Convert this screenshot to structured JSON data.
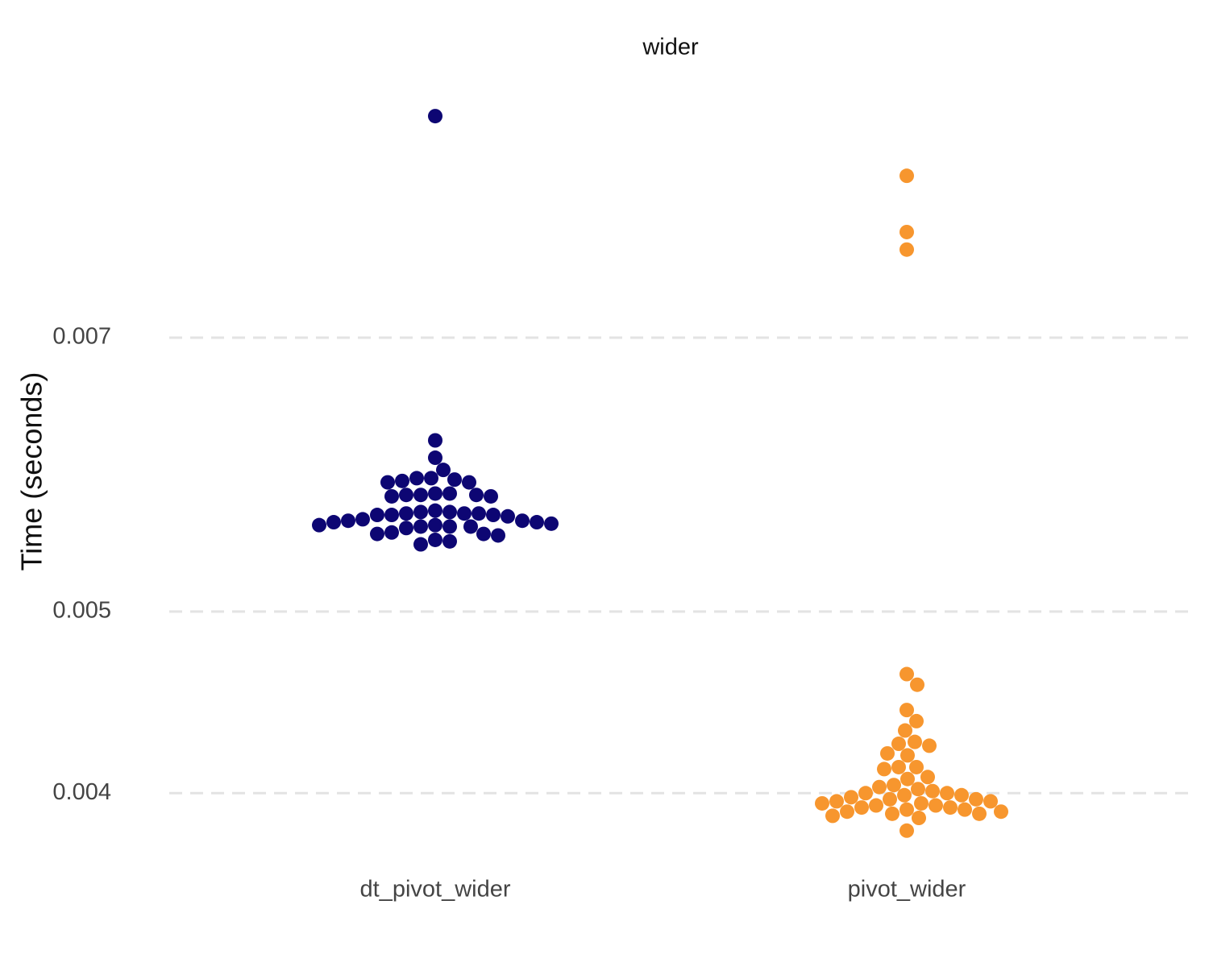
{
  "chart_data": {
    "type": "beeswarm",
    "title": "wider",
    "y_label": "Time (seconds)",
    "categories": [
      "dt_pivot_wider",
      "pivot_wider"
    ],
    "colors": [
      "#0d0673",
      "#f7962e"
    ],
    "values": [
      [
        0.00919,
        0.00617,
        0.00604,
        0.00595,
        0.00589,
        0.00589,
        0.00588,
        0.00587,
        0.00586,
        0.00586,
        0.00578,
        0.00578,
        0.00577,
        0.00577,
        0.00577,
        0.00576,
        0.00576,
        0.00566,
        0.00565,
        0.00565,
        0.00564,
        0.00564,
        0.00564,
        0.00563,
        0.00563,
        0.00563,
        0.00562,
        0.0056,
        0.00559,
        0.00559,
        0.00558,
        0.00558,
        0.00557,
        0.00556,
        0.00556,
        0.00555,
        0.00555,
        0.00555,
        0.00554,
        0.00551,
        0.0055,
        0.0055,
        0.00549,
        0.00546,
        0.00545,
        0.00543
      ],
      [
        0.00854,
        0.00797,
        0.0078,
        0.00463,
        0.00457,
        0.00443,
        0.00437,
        0.00432,
        0.00426,
        0.00425,
        0.00424,
        0.0042,
        0.00419,
        0.00413,
        0.00413,
        0.00412,
        0.00408,
        0.00407,
        0.00404,
        0.00403,
        0.00402,
        0.00401,
        0.004,
        0.004,
        0.00399,
        0.00399,
        0.00398,
        0.00397,
        0.00397,
        0.00396,
        0.00396,
        0.00395,
        0.00395,
        0.00394,
        0.00394,
        0.00393,
        0.00393,
        0.00392,
        0.00392,
        0.00391,
        0.00391,
        0.0039,
        0.0039,
        0.00389,
        0.00388,
        0.00382
      ]
    ],
    "ylim": [
      0.0037,
      0.0096
    ],
    "yticks": [
      0.004,
      0.005,
      0.007
    ],
    "log_y": true,
    "grid": true
  }
}
